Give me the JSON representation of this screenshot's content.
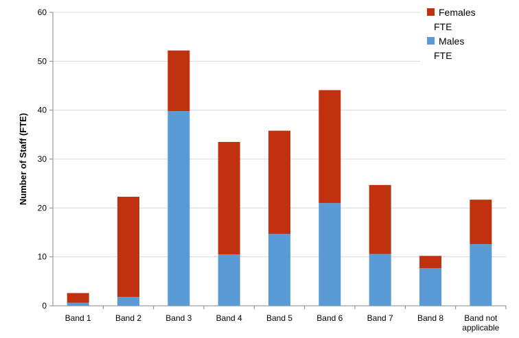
{
  "chart_data": {
    "type": "bar",
    "stacked": true,
    "title": "",
    "xlabel": "",
    "ylabel": "Number of Staff (FTE)",
    "ylim": [
      0,
      60
    ],
    "yticks": [
      0,
      10,
      20,
      30,
      40,
      50,
      60
    ],
    "grid": true,
    "legend_position": "top-right",
    "categories": [
      "Band 1",
      "Band 2",
      "Band 3",
      "Band 4",
      "Band 5",
      "Band 6",
      "Band 7",
      "Band 8",
      "Band not applicable"
    ],
    "category_lines": [
      [
        "Band 1"
      ],
      [
        "Band 2"
      ],
      [
        "Band 3"
      ],
      [
        "Band 4"
      ],
      [
        "Band 5"
      ],
      [
        "Band 6"
      ],
      [
        "Band 7"
      ],
      [
        "Band 8"
      ],
      [
        "Band not",
        "applicable"
      ]
    ],
    "series": [
      {
        "name": "Males FTE",
        "legend_lines": [
          "Males",
          "FTE"
        ],
        "color": "#5b9bd5",
        "values": [
          0.6,
          1.8,
          39.8,
          10.5,
          14.7,
          21.0,
          10.6,
          7.7,
          12.6
        ]
      },
      {
        "name": "Females FTE",
        "legend_lines": [
          "Females",
          "FTE"
        ],
        "color": "#c0320f",
        "values": [
          2.0,
          20.5,
          12.4,
          23.0,
          21.1,
          23.1,
          14.1,
          2.5,
          9.1
        ]
      }
    ]
  }
}
